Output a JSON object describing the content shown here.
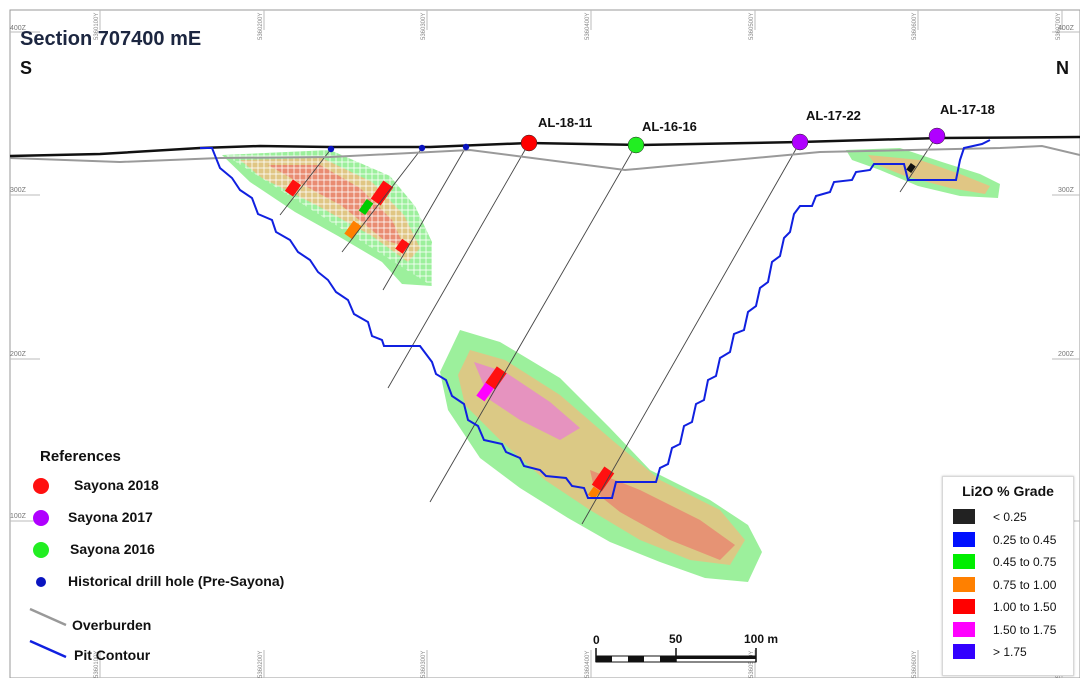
{
  "title": "Section 707400 mE",
  "directions": {
    "south": "S",
    "north": "N"
  },
  "elevation_labels": [
    "400Z",
    "300Z",
    "200Z",
    "100Z"
  ],
  "northing_labels": [
    "5360100Y",
    "5360200Y",
    "5360300Y",
    "5360400Y",
    "5360500Y",
    "5360600Y",
    "5360700Y"
  ],
  "drill_holes": [
    {
      "name": "AL-18-11",
      "program": "Sayona 2018",
      "color": "#ff0000"
    },
    {
      "name": "AL-16-16",
      "program": "Sayona 2016",
      "color": "#22ee22"
    },
    {
      "name": "AL-17-22",
      "program": "Sayona 2017",
      "color": "#b000ff"
    },
    {
      "name": "AL-17-18",
      "program": "Sayona 2017",
      "color": "#b000ff"
    }
  ],
  "legend": {
    "heading": "References",
    "items": [
      {
        "label": "Sayona 2018",
        "symbol": "dot",
        "color": "#ff1010"
      },
      {
        "label": "Sayona 2017",
        "symbol": "dot",
        "color": "#b000ff"
      },
      {
        "label": "Sayona 2016",
        "symbol": "dot",
        "color": "#22ee22"
      },
      {
        "label": "Historical drill hole (Pre-Sayona)",
        "symbol": "small-dot",
        "color": "#0a14c0"
      },
      {
        "label": "Overburden",
        "symbol": "line",
        "color": "#999999"
      },
      {
        "label": "Pit Contour",
        "symbol": "line",
        "color": "#1020e0"
      }
    ]
  },
  "grade_legend": {
    "title": "Li2O % Grade",
    "classes": [
      {
        "label": "< 0.25",
        "color": "#222222"
      },
      {
        "label": "0.25 to 0.45",
        "color": "#0010ff"
      },
      {
        "label": "0.45 to 0.75",
        "color": "#00ee00"
      },
      {
        "label": "0.75 to 1.00",
        "color": "#ff8000"
      },
      {
        "label": "1.00 to 1.50",
        "color": "#ff0000"
      },
      {
        "label": "1.50 to 1.75",
        "color": "#ff00ff"
      },
      {
        "label": "> 1.75",
        "color": "#3300ff"
      }
    ]
  },
  "scale_bar": {
    "labels": [
      "0",
      "50",
      "100 m"
    ]
  }
}
